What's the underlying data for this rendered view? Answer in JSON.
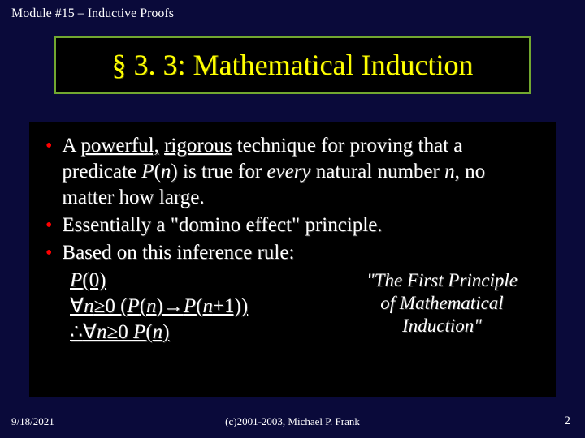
{
  "module_header": "Module #15 – Inductive Proofs",
  "title": "§ 3. 3: Mathematical Induction",
  "title_box": {
    "border_color": "#72a830",
    "background": "#000000",
    "text_color": "#ffff00"
  },
  "body_box": {
    "background": "#000000",
    "text_color": "#ffffff"
  },
  "bullet_color": "#ff0000",
  "bullets": [
    {
      "pre": "A ",
      "u1": "powerful,",
      "mid1": " ",
      "u2": "rigorous",
      "mid2": " technique for proving that a predicate ",
      "it1": "P",
      "mid3": "(",
      "it2": "n",
      "mid4": ") is true for ",
      "it3": "every",
      "mid5": " natural number ",
      "it4": "n",
      "mid6": ", no matter how large."
    },
    {
      "text": "Essentially a \"domino effect\" principle."
    },
    {
      "text": "Based on this inference rule:"
    }
  ],
  "inference": {
    "line1_pre": "P",
    "line1_post": "(0)",
    "line2_forall": "∀",
    "line2_n": "n",
    "line2_ge": "≥0 (",
    "line2_p": "P",
    "line2_paren1": "(",
    "line2_n2": "n",
    "line2_arrow": ")→",
    "line2_p2": "P",
    "line2_paren2": "(",
    "line2_n3": "n",
    "line2_end": "+1))",
    "line3_therefore": "∴",
    "line3_forall": "∀",
    "line3_n": "n",
    "line3_ge": "≥0 ",
    "line3_p": "P",
    "line3_paren": "(",
    "line3_n2": "n",
    "line3_end": ")"
  },
  "principle_note": {
    "l1": "\"The First Principle",
    "l2": "of Mathematical",
    "l3": "Induction\""
  },
  "footer": {
    "date": "9/18/2021",
    "copyright": "(c)2001-2003, Michael P. Frank",
    "page": "2"
  },
  "page_background": "#0a0a3a"
}
